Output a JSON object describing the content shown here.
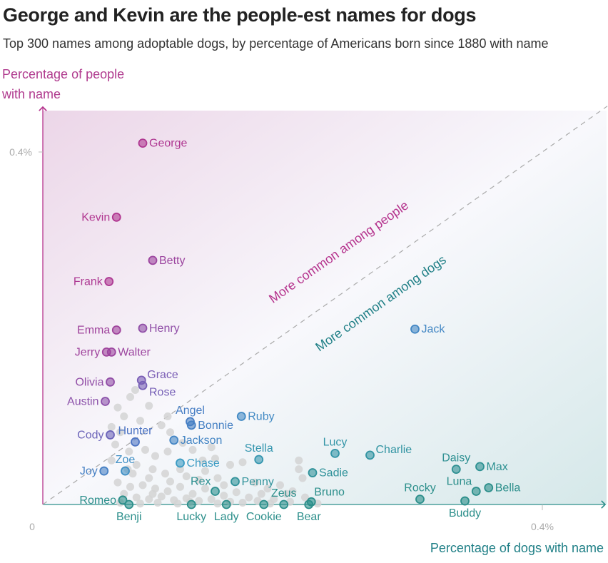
{
  "chart_data": {
    "type": "scatter",
    "title": "George and Kevin are the people-est names for dogs",
    "subtitle": "Top 300 names among adoptable dogs, by percentage of Americans born since 1880 with name",
    "xlabel": "Percentage of dogs with name",
    "ylabel": "Percentage of people with name",
    "xlim": [
      0,
      0.45
    ],
    "ylim": [
      0,
      0.45
    ],
    "x_ticks": [
      {
        "value": 0,
        "label": "0"
      },
      {
        "value": 0.4,
        "label": "0.4%"
      }
    ],
    "y_ticks": [
      {
        "value": 0.4,
        "label": "0.4%"
      }
    ],
    "reference_line": "y = x",
    "annotations": {
      "people": "More common among people",
      "dogs": "More common among dogs"
    },
    "colors": {
      "people": "#b5338d",
      "purple": "#7d5bb4",
      "blue": "#4a76c4",
      "cyan": "#3b9bc4",
      "dogs": "#2c8f8b",
      "gray": "#d3d3d3"
    },
    "labeled_points": [
      {
        "name": "George",
        "x": 0.08,
        "y": 0.41,
        "label_pos": "right"
      },
      {
        "name": "Kevin",
        "x": 0.059,
        "y": 0.326,
        "label_pos": "left"
      },
      {
        "name": "Betty",
        "x": 0.088,
        "y": 0.277,
        "label_pos": "right"
      },
      {
        "name": "Frank",
        "x": 0.053,
        "y": 0.253,
        "label_pos": "left"
      },
      {
        "name": "Emma",
        "x": 0.059,
        "y": 0.198,
        "label_pos": "left"
      },
      {
        "name": "Henry",
        "x": 0.08,
        "y": 0.2,
        "label_pos": "right"
      },
      {
        "name": "Jerry",
        "x": 0.051,
        "y": 0.173,
        "label_pos": "left"
      },
      {
        "name": "Walter",
        "x": 0.055,
        "y": 0.173,
        "label_pos": "right"
      },
      {
        "name": "Olivia",
        "x": 0.054,
        "y": 0.139,
        "label_pos": "left"
      },
      {
        "name": "Grace",
        "x": 0.079,
        "y": 0.141,
        "label_pos": "right-up"
      },
      {
        "name": "Rose",
        "x": 0.08,
        "y": 0.135,
        "label_pos": "right-down"
      },
      {
        "name": "Austin",
        "x": 0.05,
        "y": 0.117,
        "label_pos": "left"
      },
      {
        "name": "Angel",
        "x": 0.118,
        "y": 0.094,
        "label_pos": "top"
      },
      {
        "name": "Bonnie",
        "x": 0.119,
        "y": 0.09,
        "label_pos": "right"
      },
      {
        "name": "Ruby",
        "x": 0.159,
        "y": 0.1,
        "label_pos": "right"
      },
      {
        "name": "Cody",
        "x": 0.054,
        "y": 0.079,
        "label_pos": "left"
      },
      {
        "name": "Hunter",
        "x": 0.074,
        "y": 0.071,
        "label_pos": "top"
      },
      {
        "name": "Jackson",
        "x": 0.105,
        "y": 0.073,
        "label_pos": "right"
      },
      {
        "name": "Jack",
        "x": 0.298,
        "y": 0.199,
        "label_pos": "right"
      },
      {
        "name": "Stella",
        "x": 0.173,
        "y": 0.051,
        "label_pos": "top"
      },
      {
        "name": "Lucy",
        "x": 0.234,
        "y": 0.058,
        "label_pos": "top"
      },
      {
        "name": "Charlie",
        "x": 0.262,
        "y": 0.056,
        "label_pos": "right-up"
      },
      {
        "name": "Chase",
        "x": 0.11,
        "y": 0.047,
        "label_pos": "right"
      },
      {
        "name": "Joy",
        "x": 0.049,
        "y": 0.038,
        "label_pos": "left"
      },
      {
        "name": "Zoe",
        "x": 0.066,
        "y": 0.038,
        "label_pos": "top"
      },
      {
        "name": "Sadie",
        "x": 0.216,
        "y": 0.036,
        "label_pos": "right"
      },
      {
        "name": "Daisy",
        "x": 0.331,
        "y": 0.04,
        "label_pos": "top"
      },
      {
        "name": "Max",
        "x": 0.35,
        "y": 0.043,
        "label_pos": "right"
      },
      {
        "name": "Penny",
        "x": 0.154,
        "y": 0.026,
        "label_pos": "right"
      },
      {
        "name": "Rex",
        "x": 0.138,
        "y": 0.015,
        "label_pos": "top-left"
      },
      {
        "name": "Bella",
        "x": 0.357,
        "y": 0.019,
        "label_pos": "right"
      },
      {
        "name": "Luna",
        "x": 0.347,
        "y": 0.015,
        "label_pos": "top-left"
      },
      {
        "name": "Romeo",
        "x": 0.064,
        "y": 0.005,
        "label_pos": "left"
      },
      {
        "name": "Benji",
        "x": 0.069,
        "y": 0.0,
        "label_pos": "bottom"
      },
      {
        "name": "Lucky",
        "x": 0.119,
        "y": 0.0,
        "label_pos": "bottom"
      },
      {
        "name": "Lady",
        "x": 0.147,
        "y": 0.0,
        "label_pos": "bottom"
      },
      {
        "name": "Cookie",
        "x": 0.177,
        "y": 0.0,
        "label_pos": "bottom"
      },
      {
        "name": "Zeus",
        "x": 0.193,
        "y": 0.0,
        "label_pos": "top"
      },
      {
        "name": "Bruno",
        "x": 0.215,
        "y": 0.003,
        "label_pos": "top-right"
      },
      {
        "name": "Bear",
        "x": 0.213,
        "y": 0.0,
        "label_pos": "bottom"
      },
      {
        "name": "Rocky",
        "x": 0.302,
        "y": 0.006,
        "label_pos": "top"
      },
      {
        "name": "Buddy",
        "x": 0.338,
        "y": 0.004,
        "label_pos": "bottom"
      }
    ],
    "other_points": [
      [
        0.074,
        0.13
      ],
      [
        0.07,
        0.122
      ],
      [
        0.085,
        0.112
      ],
      [
        0.06,
        0.11
      ],
      [
        0.065,
        0.1
      ],
      [
        0.078,
        0.095
      ],
      [
        0.055,
        0.088
      ],
      [
        0.062,
        0.082
      ],
      [
        0.095,
        0.09
      ],
      [
        0.102,
        0.082
      ],
      [
        0.058,
        0.068
      ],
      [
        0.069,
        0.06
      ],
      [
        0.082,
        0.062
      ],
      [
        0.09,
        0.055
      ],
      [
        0.1,
        0.06
      ],
      [
        0.12,
        0.062
      ],
      [
        0.128,
        0.05
      ],
      [
        0.138,
        0.052
      ],
      [
        0.15,
        0.045
      ],
      [
        0.16,
        0.048
      ],
      [
        0.055,
        0.05
      ],
      [
        0.075,
        0.045
      ],
      [
        0.088,
        0.04
      ],
      [
        0.098,
        0.035
      ],
      [
        0.115,
        0.032
      ],
      [
        0.125,
        0.028
      ],
      [
        0.14,
        0.03
      ],
      [
        0.17,
        0.025
      ],
      [
        0.19,
        0.022
      ],
      [
        0.205,
        0.05
      ],
      [
        0.208,
        0.03
      ],
      [
        0.2,
        0.015
      ],
      [
        0.06,
        0.025
      ],
      [
        0.07,
        0.02
      ],
      [
        0.08,
        0.022
      ],
      [
        0.09,
        0.018
      ],
      [
        0.1,
        0.015
      ],
      [
        0.11,
        0.02
      ],
      [
        0.12,
        0.012
      ],
      [
        0.13,
        0.018
      ],
      [
        0.145,
        0.01
      ],
      [
        0.155,
        0.014
      ],
      [
        0.165,
        0.008
      ],
      [
        0.175,
        0.012
      ],
      [
        0.185,
        0.006
      ],
      [
        0.065,
        0.012
      ],
      [
        0.075,
        0.008
      ],
      [
        0.085,
        0.006
      ],
      [
        0.095,
        0.009
      ],
      [
        0.105,
        0.005
      ],
      [
        0.115,
        0.007
      ],
      [
        0.125,
        0.004
      ],
      [
        0.135,
        0.006
      ],
      [
        0.15,
        0.003
      ],
      [
        0.16,
        0.002
      ],
      [
        0.172,
        0.004
      ],
      [
        0.182,
        0.001
      ],
      [
        0.062,
        0.002
      ],
      [
        0.078,
        0.001
      ],
      [
        0.092,
        0.002
      ],
      [
        0.108,
        0.001
      ],
      [
        0.118,
        0.003
      ],
      [
        0.14,
        0.001
      ],
      [
        0.198,
        0.003
      ],
      [
        0.22,
        0.001
      ],
      [
        0.21,
        0.008
      ],
      [
        0.085,
        0.03
      ],
      [
        0.072,
        0.035
      ],
      [
        0.11,
        0.04
      ],
      [
        0.13,
        0.038
      ],
      [
        0.205,
        0.04
      ],
      [
        0.195,
        0.012
      ],
      [
        0.145,
        0.022
      ],
      [
        0.102,
        0.026
      ],
      [
        0.088,
        0.012
      ],
      [
        0.068,
        0.04
      ],
      [
        0.1,
        0.1
      ],
      [
        0.112,
        0.07
      ],
      [
        0.135,
        0.065
      ],
      [
        0.18,
        0.018
      ]
    ]
  }
}
